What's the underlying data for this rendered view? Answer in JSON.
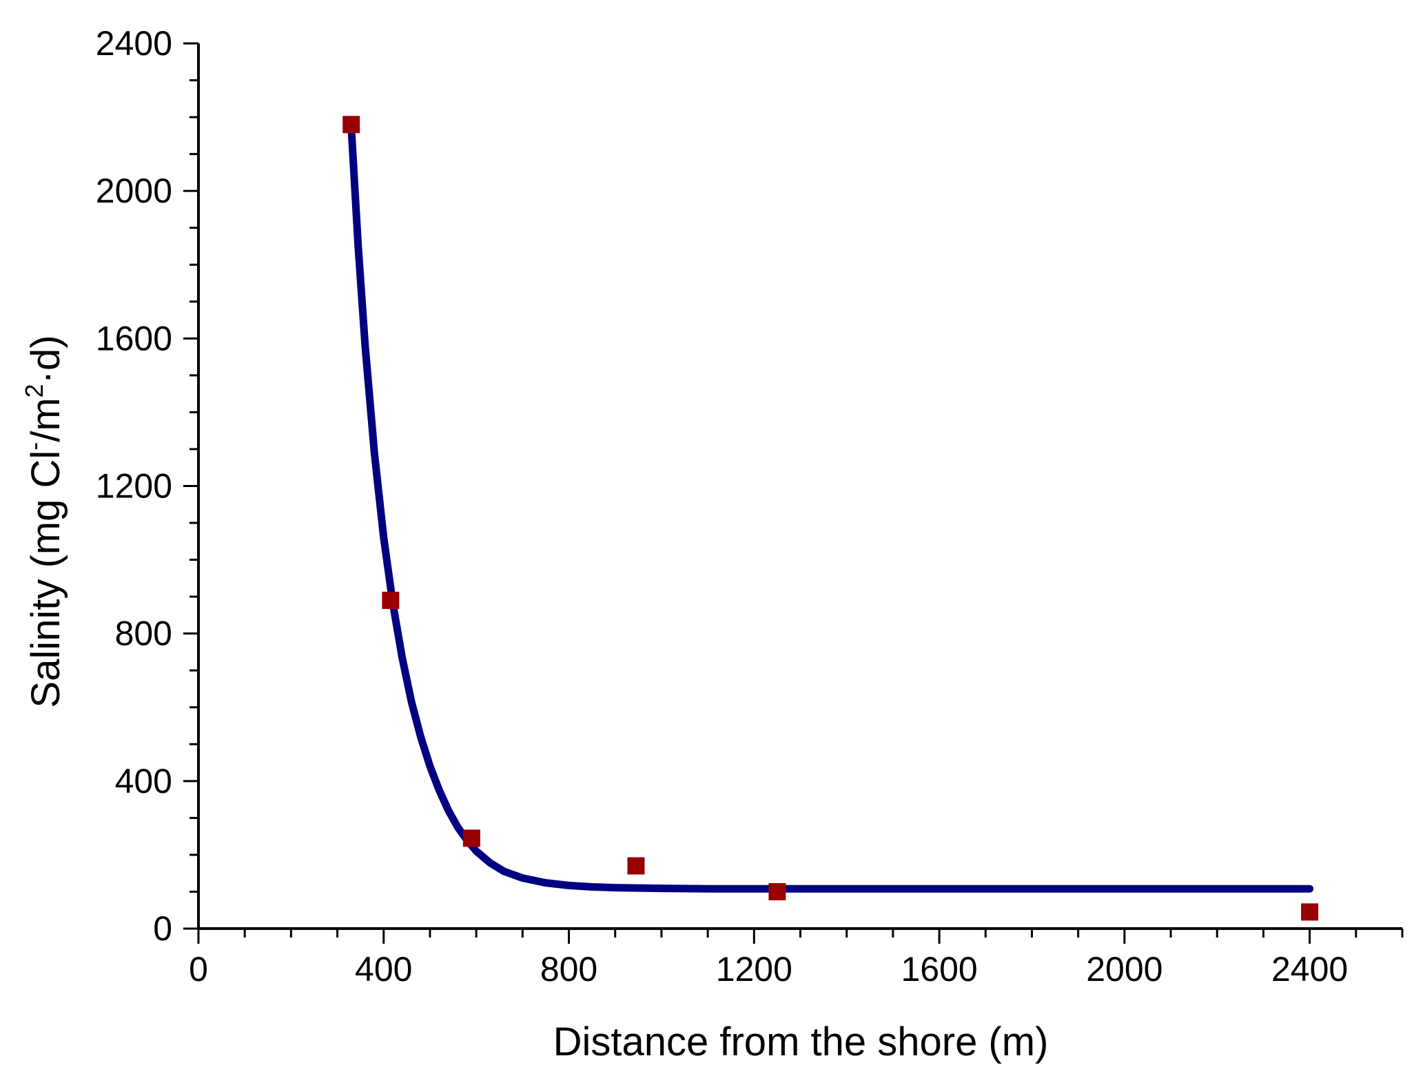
{
  "chart_data": {
    "type": "scatter",
    "title": "",
    "xlabel": "Distance from the shore (m)",
    "ylabel": {
      "parts": [
        "Salinity (mg Cl",
        "-",
        "/m",
        "2",
        "·d)"
      ],
      "text": "Salinity (mg Cl-/m2·d)"
    },
    "xlim": [
      0,
      2600
    ],
    "ylim": [
      0,
      2400
    ],
    "x_ticks": [
      0,
      400,
      800,
      1200,
      1600,
      2000,
      2400
    ],
    "y_ticks": [
      0,
      400,
      800,
      1200,
      1600,
      2000,
      2400
    ],
    "x_minor_step": 100,
    "y_minor_step": 100,
    "grid": false,
    "series": [
      {
        "kind": "points",
        "marker": "square",
        "color": "#990000",
        "x": [
          330,
          415,
          590,
          945,
          1250,
          2400
        ],
        "y": [
          2180,
          890,
          245,
          170,
          100,
          45
        ]
      },
      {
        "kind": "fit_curve",
        "color": "#000080",
        "x": [
          330,
          345,
          360,
          380,
          400,
          420,
          440,
          460,
          480,
          500,
          520,
          540,
          560,
          580,
          600,
          630,
          660,
          700,
          750,
          800,
          850,
          900,
          950,
          1000,
          1100,
          1200,
          1400,
          1600,
          1800,
          2000,
          2200,
          2400
        ],
        "y": [
          2175,
          1850,
          1580,
          1290,
          1060,
          880,
          735,
          615,
          520,
          440,
          375,
          320,
          275,
          240,
          210,
          178,
          155,
          137,
          124,
          117,
          113,
          111,
          110,
          109,
          108,
          108,
          108,
          108,
          108,
          108,
          108,
          108
        ]
      }
    ]
  }
}
